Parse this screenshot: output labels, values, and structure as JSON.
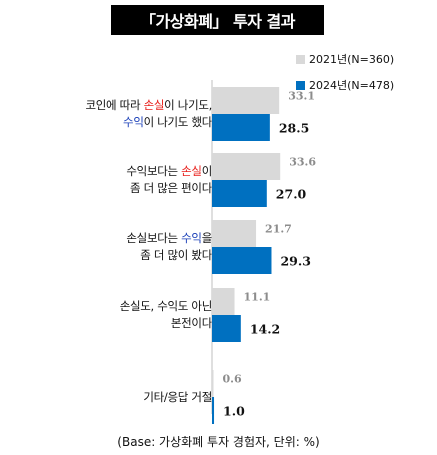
{
  "title": "「가상화폐」 투자 결과",
  "footnote": "(Base: 가상화폐 투자 경험자, 단위: %)",
  "colors": {
    "series_2021": "#d9d9d9",
    "series_2024": "#0070c0",
    "value_2021": "#8c8c8c",
    "value_2024": "#111111"
  },
  "chart_data": {
    "type": "bar",
    "orientation": "horizontal",
    "categories": [
      "코인에 따라 손실이 나기도, 수익이 나기도 했다",
      "수익보다는 손실이 좀 더 많은 편이다",
      "손실보다는 수익을 좀 더 많이 봤다",
      "손실도, 수익도 아닌 본전이다",
      "기타/응답 거절"
    ],
    "category_lines": [
      [
        [
          {
            "t": "코인에 따라 "
          },
          {
            "t": "손실",
            "c": "red"
          },
          {
            "t": "이 나기도,"
          }
        ],
        [
          {
            "t": "수익",
            "c": "blue"
          },
          {
            "t": "이 나기도 했다"
          }
        ]
      ],
      [
        [
          {
            "t": "수익보다는 "
          },
          {
            "t": "손실",
            "c": "red"
          },
          {
            "t": "이"
          }
        ],
        [
          {
            "t": "좀 더 많은 편이다"
          }
        ]
      ],
      [
        [
          {
            "t": "손실보다는 "
          },
          {
            "t": "수익",
            "c": "blue"
          },
          {
            "t": "을"
          }
        ],
        [
          {
            "t": "좀 더 많이 봤다"
          }
        ]
      ],
      [
        [
          {
            "t": "손실도, 수익도 아닌"
          }
        ],
        [
          {
            "t": "본전이다"
          }
        ]
      ],
      [
        [
          {
            "t": "기타/응답 거절"
          }
        ]
      ]
    ],
    "series": [
      {
        "name": "2021년(N=360)",
        "values": [
          33.1,
          33.6,
          21.7,
          11.1,
          0.6
        ]
      },
      {
        "name": "2024년(N=478)",
        "values": [
          28.5,
          27.0,
          29.3,
          14.2,
          1.0
        ]
      }
    ],
    "value_labels": [
      [
        "33.1",
        "33.6",
        "21.7",
        "11.1",
        "0.6"
      ],
      [
        "28.5",
        "27.0",
        "29.3",
        "14.2",
        "1.0"
      ]
    ],
    "legend_position": "top-right",
    "grid": false
  }
}
